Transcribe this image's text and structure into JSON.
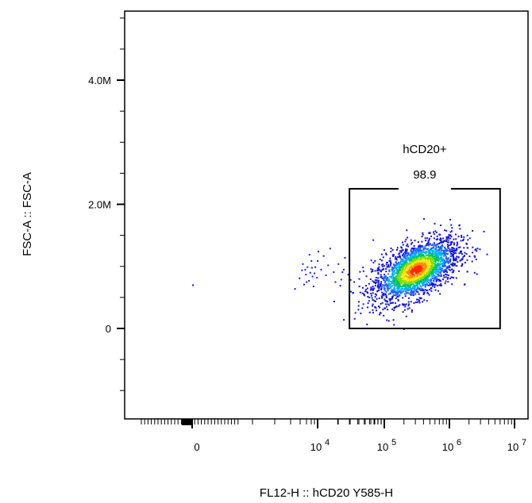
{
  "chart_data": {
    "type": "scatter",
    "title": "",
    "xlabel": "FL12-H :: hCD20 Y585-H",
    "ylabel": "FSC-A :: FSC-A",
    "x_scale": "biexponential",
    "y_scale": "linear",
    "ylim": [
      -1300000,
      5200000
    ],
    "y_ticks": [
      {
        "value": 0,
        "label": "0"
      },
      {
        "value": 2000000,
        "label": "2.0M"
      },
      {
        "value": 4000000,
        "label": "4.0M"
      }
    ],
    "x_ticks": [
      {
        "value": 0,
        "label": "0"
      },
      {
        "value": 10000,
        "base": "10",
        "exp": "4"
      },
      {
        "value": 100000,
        "base": "10",
        "exp": "5"
      },
      {
        "value": 1000000,
        "base": "10",
        "exp": "6"
      },
      {
        "value": 10000000,
        "base": "10",
        "exp": "7"
      }
    ],
    "gate": {
      "name": "hCD20+",
      "percent": "98.9",
      "x_range": [
        30000,
        6000000
      ],
      "y_range": [
        0,
        2250000
      ]
    },
    "populations": [
      {
        "center_x": 300000,
        "center_y": 950000,
        "spread_log_x": 0.33,
        "spread_y": 260000,
        "density": "high"
      }
    ],
    "sparse_points": [
      [
        0,
        710000
      ],
      [
        1800,
        650000
      ],
      [
        2500,
        820000
      ],
      [
        3000,
        950000
      ],
      [
        3500,
        720000
      ],
      [
        4000,
        880000
      ],
      [
        4500,
        1000000
      ],
      [
        5000,
        780000
      ],
      [
        5500,
        910000
      ],
      [
        6000,
        1100000
      ],
      [
        6500,
        850000
      ],
      [
        7000,
        690000
      ],
      [
        8000,
        1000000
      ],
      [
        9000,
        830000
      ],
      [
        10000,
        1250000
      ],
      [
        11000,
        960000
      ],
      [
        12000,
        1180000
      ],
      [
        13000,
        870000
      ],
      [
        15000,
        1300000
      ],
      [
        17000,
        920000
      ],
      [
        20000,
        1050000
      ],
      [
        22000,
        800000
      ],
      [
        25000,
        1150000
      ],
      [
        28000,
        880000
      ],
      [
        3200,
        1050000
      ],
      [
        3800,
        960000
      ],
      [
        4200,
        760000
      ],
      [
        5200,
        1200000
      ],
      [
        6200,
        990000
      ],
      [
        7500,
        900000
      ],
      [
        9500,
        1100000
      ],
      [
        14000,
        1030000
      ],
      [
        18000,
        760000
      ],
      [
        24000,
        960000
      ]
    ]
  }
}
